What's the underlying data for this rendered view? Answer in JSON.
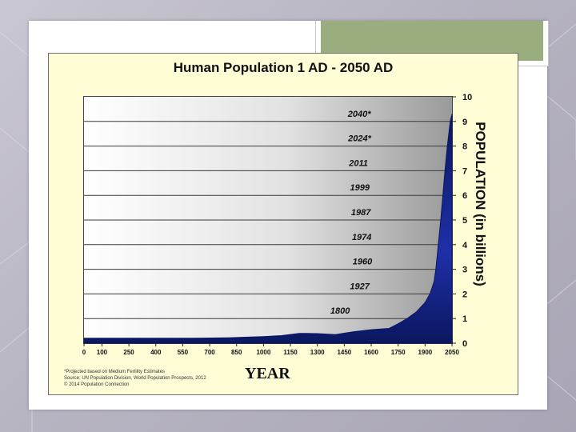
{
  "chart_data": {
    "type": "area",
    "title": "Human Population 1 AD - 2050 AD",
    "xlabel": "YEAR",
    "ylabel": "POPULATION (in billions)",
    "x_ticks": [
      "0",
      "100",
      "250",
      "400",
      "550",
      "700",
      "850",
      "1000",
      "1150",
      "1300",
      "1450",
      "1600",
      "1750",
      "1900",
      "2050"
    ],
    "y_ticks": [
      "0",
      "1",
      "2",
      "3",
      "4",
      "5",
      "6",
      "7",
      "8",
      "9",
      "10"
    ],
    "ylim": [
      0,
      10
    ],
    "xlim": [
      0,
      2050
    ],
    "series": [
      {
        "x": [
          0,
          200,
          400,
          600,
          800,
          1000,
          1100,
          1200,
          1300,
          1400,
          1500,
          1600,
          1700,
          1750,
          1800,
          1850,
          1900,
          1927,
          1950,
          1960,
          1974,
          1987,
          1999,
          2011,
          2024,
          2040,
          2050
        ],
        "values": [
          0.2,
          0.2,
          0.2,
          0.2,
          0.22,
          0.27,
          0.31,
          0.4,
          0.39,
          0.35,
          0.46,
          0.55,
          0.6,
          0.79,
          1.0,
          1.26,
          1.65,
          2.0,
          2.5,
          3.0,
          4.0,
          5.0,
          6.0,
          7.0,
          8.0,
          9.0,
          9.3
        ]
      }
    ],
    "annotations": [
      {
        "label": "1800",
        "year": 1800,
        "value": 1
      },
      {
        "label": "1927",
        "year": 1927,
        "value": 2
      },
      {
        "label": "1960",
        "year": 1960,
        "value": 3
      },
      {
        "label": "1974",
        "year": 1974,
        "value": 4
      },
      {
        "label": "1987",
        "year": 1987,
        "value": 5
      },
      {
        "label": "1999",
        "year": 1999,
        "value": 6
      },
      {
        "label": "2011",
        "year": 2011,
        "value": 7
      },
      {
        "label": "2024*",
        "year": 2024,
        "value": 8
      },
      {
        "label": "2040*",
        "year": 2040,
        "value": 9
      }
    ],
    "footnotes": [
      "*Projected based on Medium Fertility Estimates",
      "Source: UN Population Division, World Population Prospects, 2012",
      "© 2014 Population Connection"
    ],
    "grid": true,
    "colors": {
      "fill": "#1f2fa8",
      "fill_dark": "#0a1760",
      "background": "#fefdd6"
    }
  }
}
